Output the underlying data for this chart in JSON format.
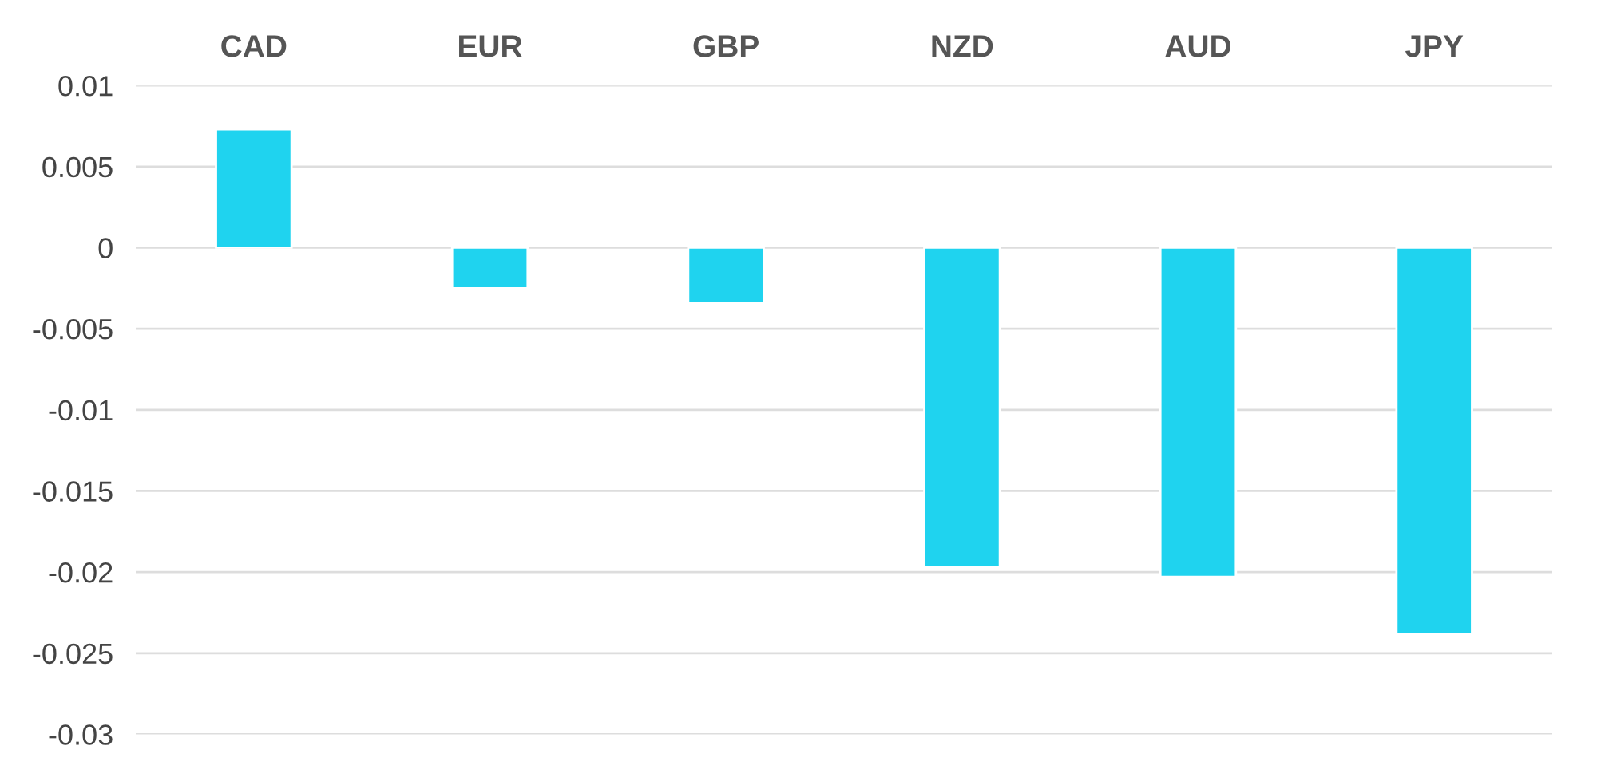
{
  "chart_data": {
    "type": "bar",
    "categories": [
      "CAD",
      "EUR",
      "GBP",
      "NZD",
      "AUD",
      "JPY"
    ],
    "values": [
      0.0073,
      -0.0025,
      -0.0034,
      -0.0197,
      -0.0203,
      -0.0238
    ],
    "color": "#1fd3ef",
    "ylim": [
      -0.03,
      0.01
    ],
    "yticks": [
      -0.03,
      -0.025,
      -0.02,
      -0.015,
      -0.01,
      -0.005,
      0,
      0.005,
      0.01
    ],
    "grid": "y"
  }
}
